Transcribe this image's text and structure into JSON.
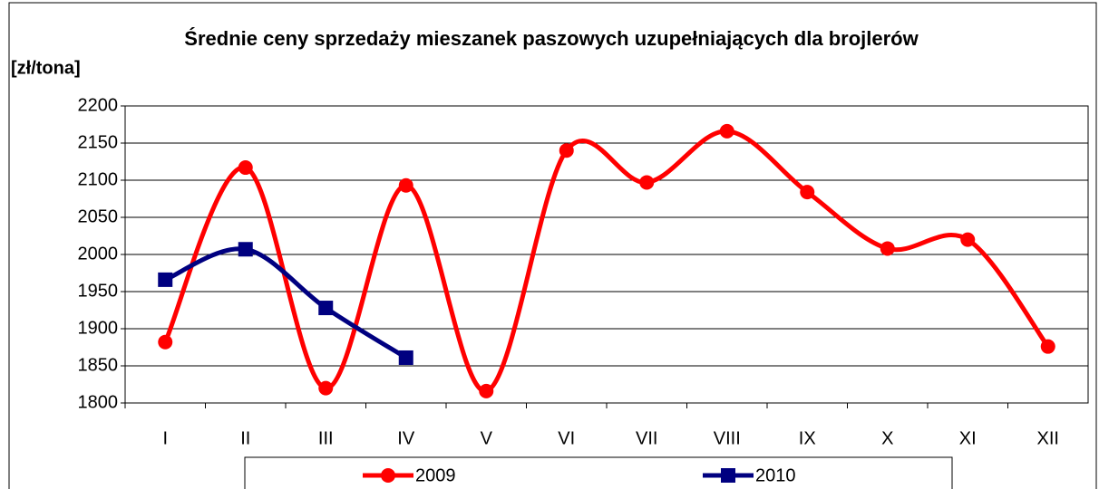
{
  "chart_data": {
    "type": "line",
    "title": "Średnie ceny sprzedaży mieszanek paszowych uzupełniających dla brojlerów",
    "y_label": "[zł/tona]",
    "categories": [
      "I",
      "II",
      "III",
      "IV",
      "V",
      "VI",
      "VII",
      "VIII",
      "IX",
      "X",
      "XI",
      "XII"
    ],
    "series": [
      {
        "name": "2009",
        "color": "#ff0000",
        "marker": "circle",
        "values": [
          1882,
          2117,
          1820,
          2093,
          1816,
          2140,
          2097,
          2166,
          2084,
          2008,
          2020,
          1876
        ]
      },
      {
        "name": "2010",
        "color": "#000080",
        "marker": "square",
        "values": [
          1966,
          2007,
          1928,
          1861,
          null,
          null,
          null,
          null,
          null,
          null,
          null,
          null
        ]
      }
    ],
    "ylim": [
      1800,
      2200
    ],
    "yticks": [
      1800,
      1850,
      1900,
      1950,
      2000,
      2050,
      2100,
      2150,
      2200
    ],
    "grid": true,
    "smooth": true,
    "legend": "bottom"
  }
}
